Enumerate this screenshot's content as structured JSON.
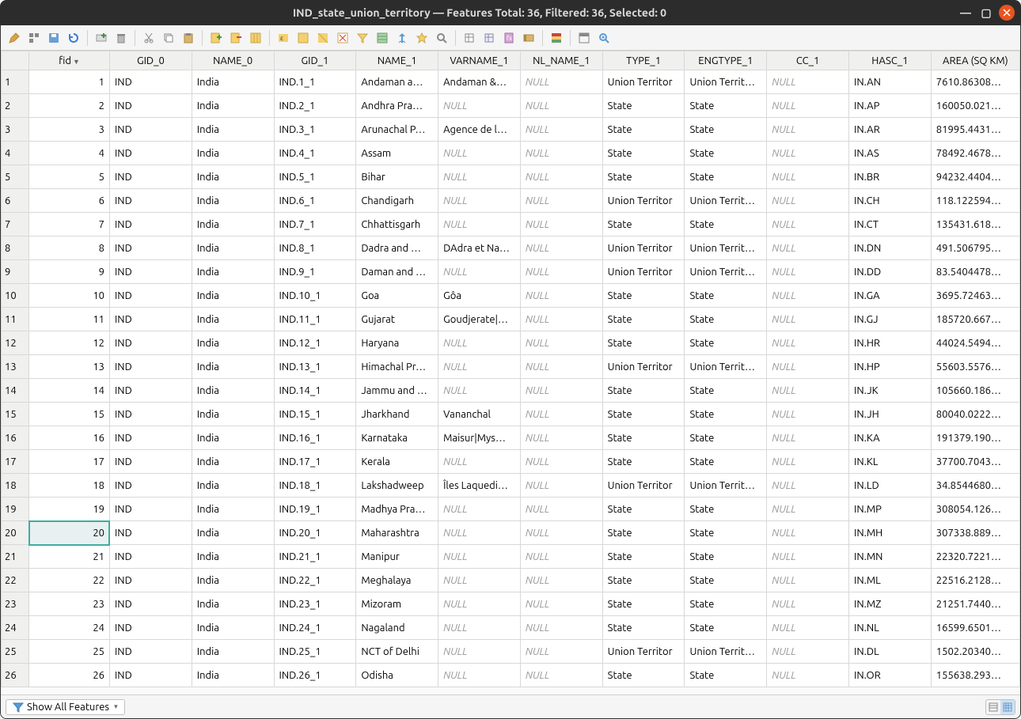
{
  "window": {
    "title": "IND_state_union_territory — Features Total: 36, Filtered: 36, Selected: 0"
  },
  "toolbar": {
    "icons": [
      "pencil",
      "multiedit",
      "save",
      "reload",
      "",
      "new-feature",
      "delete",
      "",
      "cut",
      "copy",
      "paste",
      "",
      "new-column",
      "delete-column",
      "rename-column",
      "",
      "filter-eq",
      "filter",
      "filter-form",
      "move-top",
      "zoom-to",
      "",
      "clipboard-in",
      "clipboard-out",
      "field-calc",
      "calc-bar",
      "",
      "conditional",
      "",
      "table-layout",
      "zoom"
    ]
  },
  "table": {
    "columns": [
      "fid",
      "GID_0",
      "NAME_0",
      "GID_1",
      "NAME_1",
      "VARNAME_1",
      "NL_NAME_1",
      "TYPE_1",
      "ENGTYPE_1",
      "CC_1",
      "HASC_1",
      "AREA (SQ KM)"
    ],
    "sorted_col": 0,
    "highlight": {
      "row": 20,
      "col": 0
    },
    "rows": [
      {
        "n": 1,
        "fid": "1",
        "gid0": "IND",
        "name0": "India",
        "gid1": "IND.1_1",
        "name1": "Andaman a…",
        "var1": "Andaman &…",
        "nl1": null,
        "type1": "Union Territor",
        "eng1": "Union Territ…",
        "cc1": null,
        "hasc1": "IN.AN",
        "area": "7610.86308…"
      },
      {
        "n": 2,
        "fid": "2",
        "gid0": "IND",
        "name0": "India",
        "gid1": "IND.2_1",
        "name1": "Andhra Pra…",
        "var1": null,
        "nl1": null,
        "type1": "State",
        "eng1": "State",
        "cc1": null,
        "hasc1": "IN.AP",
        "area": "160050.021…"
      },
      {
        "n": 3,
        "fid": "3",
        "gid0": "IND",
        "name0": "India",
        "gid1": "IND.3_1",
        "name1": "Arunachal P…",
        "var1": "Agence de l…",
        "nl1": null,
        "type1": "State",
        "eng1": "State",
        "cc1": null,
        "hasc1": "IN.AR",
        "area": "81995.4431…"
      },
      {
        "n": 4,
        "fid": "4",
        "gid0": "IND",
        "name0": "India",
        "gid1": "IND.4_1",
        "name1": "Assam",
        "var1": null,
        "nl1": null,
        "type1": "State",
        "eng1": "State",
        "cc1": null,
        "hasc1": "IN.AS",
        "area": "78492.4678…"
      },
      {
        "n": 5,
        "fid": "5",
        "gid0": "IND",
        "name0": "India",
        "gid1": "IND.5_1",
        "name1": "Bihar",
        "var1": null,
        "nl1": null,
        "type1": "State",
        "eng1": "State",
        "cc1": null,
        "hasc1": "IN.BR",
        "area": "94232.4404…"
      },
      {
        "n": 6,
        "fid": "6",
        "gid0": "IND",
        "name0": "India",
        "gid1": "IND.6_1",
        "name1": "Chandigarh",
        "var1": null,
        "nl1": null,
        "type1": "Union Territor",
        "eng1": "Union Territ…",
        "cc1": null,
        "hasc1": "IN.CH",
        "area": "118.122594…"
      },
      {
        "n": 7,
        "fid": "7",
        "gid0": "IND",
        "name0": "India",
        "gid1": "IND.7_1",
        "name1": "Chhattisgarh",
        "var1": null,
        "nl1": null,
        "type1": "State",
        "eng1": "State",
        "cc1": null,
        "hasc1": "IN.CT",
        "area": "135431.618…"
      },
      {
        "n": 8,
        "fid": "8",
        "gid0": "IND",
        "name0": "India",
        "gid1": "IND.8_1",
        "name1": "Dadra and …",
        "var1": "DAdra et Na…",
        "nl1": null,
        "type1": "Union Territor",
        "eng1": "Union Territ…",
        "cc1": null,
        "hasc1": "IN.DN",
        "area": "491.506795…"
      },
      {
        "n": 9,
        "fid": "9",
        "gid0": "IND",
        "name0": "India",
        "gid1": "IND.9_1",
        "name1": "Daman and …",
        "var1": null,
        "nl1": null,
        "type1": "Union Territor",
        "eng1": "Union Territ…",
        "cc1": null,
        "hasc1": "IN.DD",
        "area": "83.5404478…"
      },
      {
        "n": 10,
        "fid": "10",
        "gid0": "IND",
        "name0": "India",
        "gid1": "IND.10_1",
        "name1": "Goa",
        "var1": "Gôa",
        "nl1": null,
        "type1": "State",
        "eng1": "State",
        "cc1": null,
        "hasc1": "IN.GA",
        "area": "3695.72463…"
      },
      {
        "n": 11,
        "fid": "11",
        "gid0": "IND",
        "name0": "India",
        "gid1": "IND.11_1",
        "name1": "Gujarat",
        "var1": "Goudjerate|…",
        "nl1": null,
        "type1": "State",
        "eng1": "State",
        "cc1": null,
        "hasc1": "IN.GJ",
        "area": "185720.667…"
      },
      {
        "n": 12,
        "fid": "12",
        "gid0": "IND",
        "name0": "India",
        "gid1": "IND.12_1",
        "name1": "Haryana",
        "var1": null,
        "nl1": null,
        "type1": "State",
        "eng1": "State",
        "cc1": null,
        "hasc1": "IN.HR",
        "area": "44024.5494…"
      },
      {
        "n": 13,
        "fid": "13",
        "gid0": "IND",
        "name0": "India",
        "gid1": "IND.13_1",
        "name1": "Himachal Pr…",
        "var1": null,
        "nl1": null,
        "type1": "Union Territor",
        "eng1": "Union Territ…",
        "cc1": null,
        "hasc1": "IN.HP",
        "area": "55603.5576…"
      },
      {
        "n": 14,
        "fid": "14",
        "gid0": "IND",
        "name0": "India",
        "gid1": "IND.14_1",
        "name1": "Jammu and …",
        "var1": null,
        "nl1": null,
        "type1": "State",
        "eng1": "State",
        "cc1": null,
        "hasc1": "IN.JK",
        "area": "105660.186…"
      },
      {
        "n": 15,
        "fid": "15",
        "gid0": "IND",
        "name0": "India",
        "gid1": "IND.15_1",
        "name1": "Jharkhand",
        "var1": "Vananchal",
        "nl1": null,
        "type1": "State",
        "eng1": "State",
        "cc1": null,
        "hasc1": "IN.JH",
        "area": "80040.0222…"
      },
      {
        "n": 16,
        "fid": "16",
        "gid0": "IND",
        "name0": "India",
        "gid1": "IND.16_1",
        "name1": "Karnataka",
        "var1": "Maisur|Mys…",
        "nl1": null,
        "type1": "State",
        "eng1": "State",
        "cc1": null,
        "hasc1": "IN.KA",
        "area": "191379.190…"
      },
      {
        "n": 17,
        "fid": "17",
        "gid0": "IND",
        "name0": "India",
        "gid1": "IND.17_1",
        "name1": "Kerala",
        "var1": null,
        "nl1": null,
        "type1": "State",
        "eng1": "State",
        "cc1": null,
        "hasc1": "IN.KL",
        "area": "37700.7043…"
      },
      {
        "n": 18,
        "fid": "18",
        "gid0": "IND",
        "name0": "India",
        "gid1": "IND.18_1",
        "name1": "Lakshadweep",
        "var1": "Îles Laquedi…",
        "nl1": null,
        "type1": "Union Territor",
        "eng1": "Union Territ…",
        "cc1": null,
        "hasc1": "IN.LD",
        "area": "34.8544680…"
      },
      {
        "n": 19,
        "fid": "19",
        "gid0": "IND",
        "name0": "India",
        "gid1": "IND.19_1",
        "name1": "Madhya Pra…",
        "var1": null,
        "nl1": null,
        "type1": "State",
        "eng1": "State",
        "cc1": null,
        "hasc1": "IN.MP",
        "area": "308054.126…"
      },
      {
        "n": 20,
        "fid": "20",
        "gid0": "IND",
        "name0": "India",
        "gid1": "IND.20_1",
        "name1": "Maharashtra",
        "var1": null,
        "nl1": null,
        "type1": "State",
        "eng1": "State",
        "cc1": null,
        "hasc1": "IN.MH",
        "area": "307338.889…"
      },
      {
        "n": 21,
        "fid": "21",
        "gid0": "IND",
        "name0": "India",
        "gid1": "IND.21_1",
        "name1": "Manipur",
        "var1": null,
        "nl1": null,
        "type1": "State",
        "eng1": "State",
        "cc1": null,
        "hasc1": "IN.MN",
        "area": "22320.7221…"
      },
      {
        "n": 22,
        "fid": "22",
        "gid0": "IND",
        "name0": "India",
        "gid1": "IND.22_1",
        "name1": "Meghalaya",
        "var1": null,
        "nl1": null,
        "type1": "State",
        "eng1": "State",
        "cc1": null,
        "hasc1": "IN.ML",
        "area": "22516.2128…"
      },
      {
        "n": 23,
        "fid": "23",
        "gid0": "IND",
        "name0": "India",
        "gid1": "IND.23_1",
        "name1": "Mizoram",
        "var1": null,
        "nl1": null,
        "type1": "State",
        "eng1": "State",
        "cc1": null,
        "hasc1": "IN.MZ",
        "area": "21251.7440…"
      },
      {
        "n": 24,
        "fid": "24",
        "gid0": "IND",
        "name0": "India",
        "gid1": "IND.24_1",
        "name1": "Nagaland",
        "var1": null,
        "nl1": null,
        "type1": "State",
        "eng1": "State",
        "cc1": null,
        "hasc1": "IN.NL",
        "area": "16599.6501…"
      },
      {
        "n": 25,
        "fid": "25",
        "gid0": "IND",
        "name0": "India",
        "gid1": "IND.25_1",
        "name1": "NCT of Delhi",
        "var1": null,
        "nl1": null,
        "type1": "Union Territor",
        "eng1": "Union Territ…",
        "cc1": null,
        "hasc1": "IN.DL",
        "area": "1502.20340…"
      },
      {
        "n": 26,
        "fid": "26",
        "gid0": "IND",
        "name0": "India",
        "gid1": "IND.26_1",
        "name1": "Odisha",
        "var1": null,
        "nl1": null,
        "type1": "State",
        "eng1": "State",
        "cc1": null,
        "hasc1": "IN.OR",
        "area": "155638.293…"
      }
    ]
  },
  "statusbar": {
    "filter_label": "Show All Features"
  },
  "colors": {
    "titlebar_bg": "#2c2c2c",
    "titlebar_fg": "#dcdcdc",
    "close_btn": "#e95420",
    "highlight_border": "#3daea0",
    "highlight_bg": "#e8f0f2",
    "null_text": "#999999",
    "header_bg": "#f0f0ee",
    "border": "#d8d8d8"
  }
}
